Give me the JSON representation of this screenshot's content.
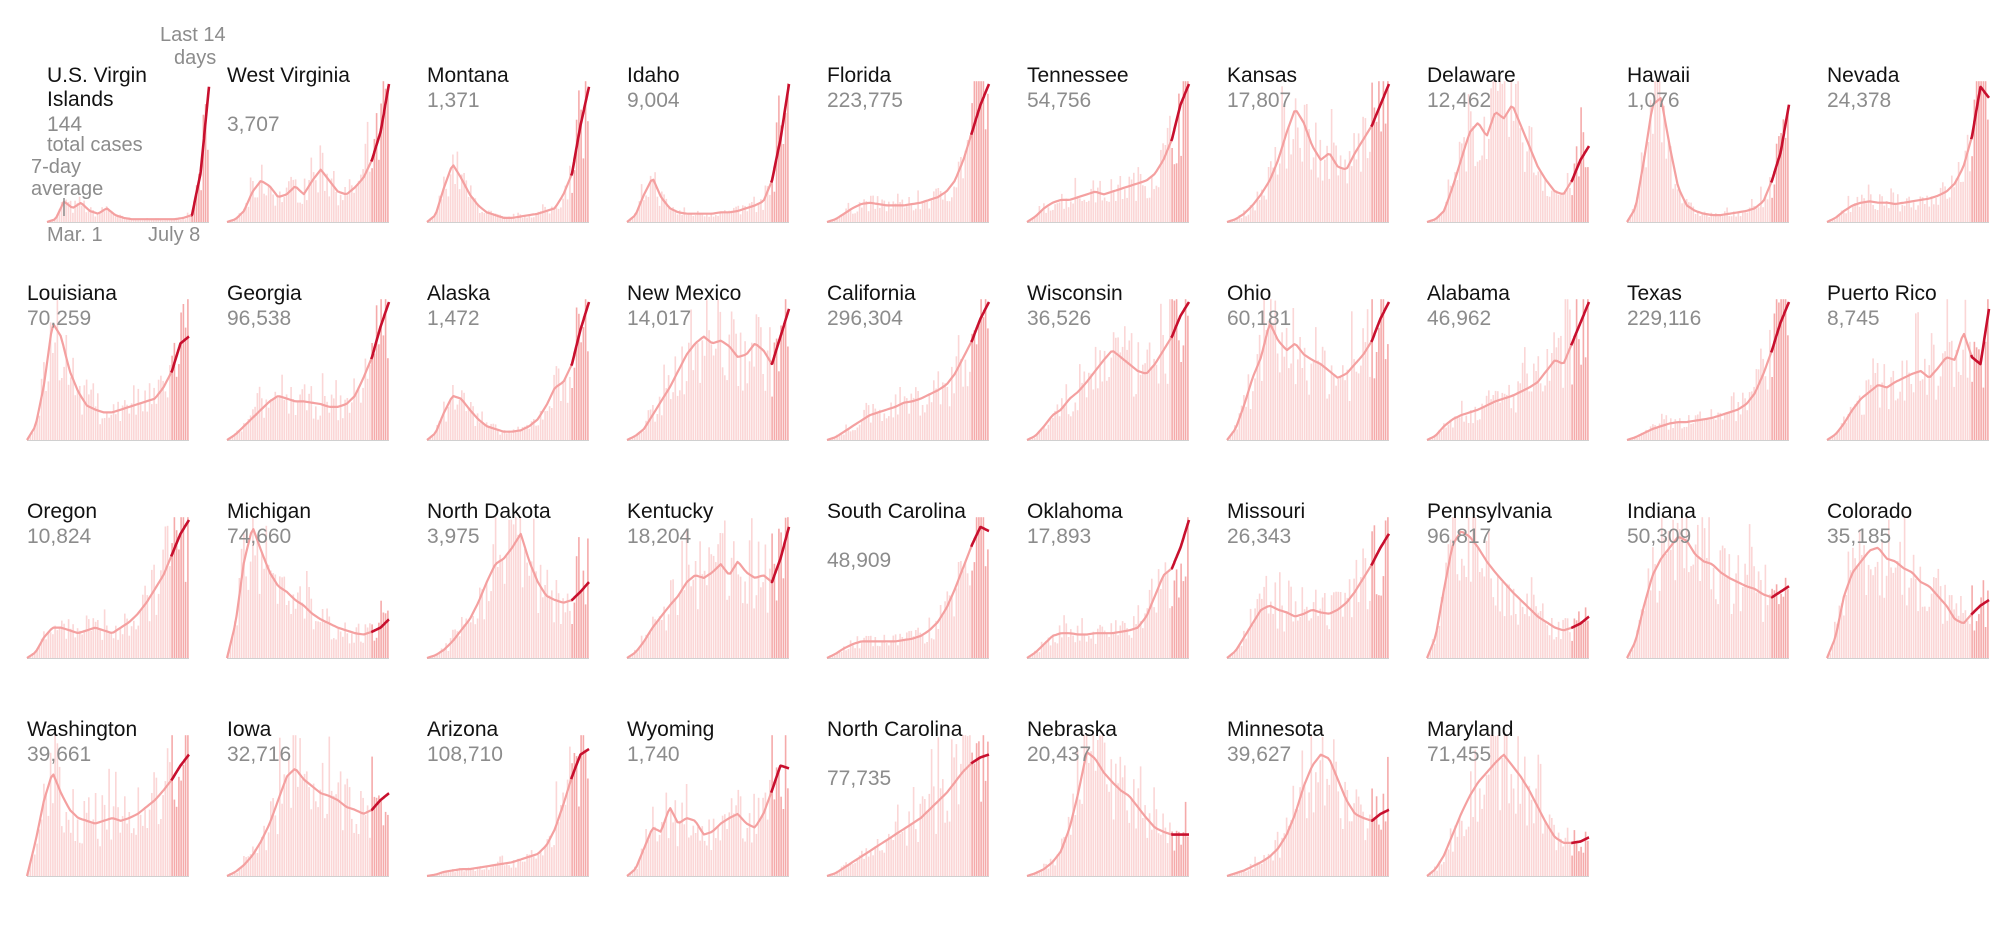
{
  "legend": {
    "last14_line1": "Last 14",
    "last14_line2": "days",
    "total_line1": "total cases",
    "avg_line1": "7-day",
    "avg_line2": "average",
    "start_date": "Mar. 1",
    "end_date": "July 8"
  },
  "colors": {
    "bar": "#fbd6d6",
    "bar_recent": "#f5aaaa",
    "line": "#f4a0a0",
    "line_recent": "#c8102e",
    "baseline": "#d0d0d0"
  },
  "chart_data": {
    "type": "area",
    "x_range": [
      "Mar. 1",
      "July 8"
    ],
    "highlight": "Last 14 days",
    "small_multiples": [
      {
        "state": "U.S. Virgin Islands",
        "total": "144",
        "shape": [
          0,
          0.02,
          0.15,
          0.1,
          0.14,
          0.08,
          0.06,
          0.1,
          0.05,
          0.03,
          0.02,
          0.02,
          0.02,
          0.02,
          0.02,
          0.02,
          0.03,
          0.05,
          0.35,
          0.98
        ]
      },
      {
        "state": "West Virginia",
        "total": "3,707",
        "shape": [
          0,
          0.02,
          0.08,
          0.22,
          0.3,
          0.26,
          0.18,
          0.2,
          0.26,
          0.2,
          0.3,
          0.38,
          0.3,
          0.22,
          0.2,
          0.25,
          0.32,
          0.45,
          0.65,
          1.0
        ]
      },
      {
        "state": "Montana",
        "total": "1,371",
        "shape": [
          0,
          0.05,
          0.25,
          0.42,
          0.32,
          0.2,
          0.12,
          0.07,
          0.05,
          0.03,
          0.03,
          0.04,
          0.05,
          0.06,
          0.08,
          0.1,
          0.2,
          0.35,
          0.7,
          0.98
        ]
      },
      {
        "state": "Idaho",
        "total": "9,004",
        "shape": [
          0,
          0.05,
          0.2,
          0.32,
          0.18,
          0.1,
          0.07,
          0.06,
          0.06,
          0.06,
          0.06,
          0.07,
          0.07,
          0.08,
          0.1,
          0.12,
          0.15,
          0.3,
          0.6,
          1.0
        ]
      },
      {
        "state": "Florida",
        "total": "223,775",
        "shape": [
          0,
          0.02,
          0.06,
          0.1,
          0.13,
          0.14,
          0.13,
          0.12,
          0.12,
          0.12,
          0.13,
          0.14,
          0.16,
          0.18,
          0.22,
          0.3,
          0.45,
          0.65,
          0.85,
          1.0
        ]
      },
      {
        "state": "Tennessee",
        "total": "54,756",
        "shape": [
          0,
          0.04,
          0.1,
          0.14,
          0.16,
          0.16,
          0.18,
          0.2,
          0.22,
          0.2,
          0.22,
          0.24,
          0.26,
          0.28,
          0.3,
          0.35,
          0.45,
          0.6,
          0.85,
          1.0
        ]
      },
      {
        "state": "Kansas",
        "total": "17,807",
        "shape": [
          0,
          0.02,
          0.06,
          0.12,
          0.2,
          0.3,
          0.45,
          0.65,
          0.82,
          0.72,
          0.55,
          0.45,
          0.5,
          0.4,
          0.38,
          0.5,
          0.6,
          0.7,
          0.85,
          1.0
        ]
      },
      {
        "state": "Delaware",
        "total": "12,462",
        "shape": [
          0,
          0.02,
          0.08,
          0.25,
          0.45,
          0.65,
          0.72,
          0.62,
          0.8,
          0.75,
          0.85,
          0.7,
          0.55,
          0.4,
          0.3,
          0.22,
          0.2,
          0.3,
          0.45,
          0.55
        ]
      },
      {
        "state": "Hawaii",
        "total": "1,076",
        "shape": [
          0,
          0.1,
          0.45,
          0.85,
          0.9,
          0.55,
          0.25,
          0.12,
          0.08,
          0.06,
          0.05,
          0.05,
          0.06,
          0.07,
          0.08,
          0.1,
          0.15,
          0.3,
          0.5,
          0.85
        ]
      },
      {
        "state": "Nevada",
        "total": "24,378",
        "shape": [
          0,
          0.03,
          0.08,
          0.12,
          0.14,
          0.15,
          0.14,
          0.14,
          0.13,
          0.14,
          0.15,
          0.16,
          0.17,
          0.19,
          0.22,
          0.28,
          0.4,
          0.62,
          0.98,
          0.9
        ]
      },
      {
        "state": "Louisiana",
        "total": "70,259",
        "shape": [
          0,
          0.1,
          0.4,
          0.85,
          0.75,
          0.5,
          0.35,
          0.25,
          0.22,
          0.2,
          0.2,
          0.22,
          0.24,
          0.26,
          0.28,
          0.3,
          0.38,
          0.5,
          0.7,
          0.75
        ]
      },
      {
        "state": "Georgia",
        "total": "96,538",
        "shape": [
          0,
          0.04,
          0.1,
          0.16,
          0.22,
          0.28,
          0.32,
          0.3,
          0.28,
          0.28,
          0.27,
          0.26,
          0.24,
          0.24,
          0.26,
          0.32,
          0.45,
          0.6,
          0.82,
          1.0
        ]
      },
      {
        "state": "Alaska",
        "total": "1,472",
        "shape": [
          0,
          0.05,
          0.2,
          0.32,
          0.3,
          0.22,
          0.15,
          0.1,
          0.08,
          0.06,
          0.06,
          0.07,
          0.1,
          0.15,
          0.25,
          0.38,
          0.42,
          0.55,
          0.8,
          1.0
        ]
      },
      {
        "state": "New Mexico",
        "total": "14,017",
        "shape": [
          0,
          0.03,
          0.08,
          0.18,
          0.28,
          0.38,
          0.5,
          0.62,
          0.7,
          0.75,
          0.7,
          0.72,
          0.68,
          0.6,
          0.62,
          0.7,
          0.65,
          0.55,
          0.75,
          0.95
        ]
      },
      {
        "state": "California",
        "total": "296,304",
        "shape": [
          0,
          0.02,
          0.06,
          0.1,
          0.14,
          0.18,
          0.2,
          0.22,
          0.24,
          0.27,
          0.28,
          0.3,
          0.33,
          0.36,
          0.4,
          0.48,
          0.6,
          0.72,
          0.88,
          1.0
        ]
      },
      {
        "state": "Wisconsin",
        "total": "36,526",
        "shape": [
          0,
          0.03,
          0.1,
          0.18,
          0.22,
          0.3,
          0.35,
          0.42,
          0.5,
          0.58,
          0.65,
          0.6,
          0.55,
          0.5,
          0.48,
          0.55,
          0.65,
          0.75,
          0.9,
          1.0
        ]
      },
      {
        "state": "Ohio",
        "total": "60,181",
        "shape": [
          0,
          0.08,
          0.25,
          0.45,
          0.6,
          0.85,
          0.72,
          0.65,
          0.7,
          0.62,
          0.58,
          0.55,
          0.5,
          0.45,
          0.48,
          0.55,
          0.62,
          0.72,
          0.88,
          1.0
        ]
      },
      {
        "state": "Alabama",
        "total": "46,962",
        "shape": [
          0,
          0.03,
          0.1,
          0.15,
          0.18,
          0.2,
          0.22,
          0.25,
          0.28,
          0.3,
          0.32,
          0.35,
          0.38,
          0.42,
          0.5,
          0.58,
          0.55,
          0.7,
          0.85,
          1.0
        ]
      },
      {
        "state": "Texas",
        "total": "229,116",
        "shape": [
          0,
          0.02,
          0.05,
          0.08,
          0.1,
          0.12,
          0.13,
          0.13,
          0.14,
          0.15,
          0.16,
          0.18,
          0.2,
          0.22,
          0.26,
          0.34,
          0.48,
          0.65,
          0.85,
          1.0
        ]
      },
      {
        "state": "Puerto Rico",
        "total": "8,745",
        "shape": [
          0,
          0.04,
          0.12,
          0.22,
          0.3,
          0.35,
          0.4,
          0.38,
          0.42,
          0.45,
          0.48,
          0.5,
          0.45,
          0.52,
          0.6,
          0.58,
          0.78,
          0.6,
          0.55,
          0.95
        ]
      },
      {
        "state": "Oregon",
        "total": "10,824",
        "shape": [
          0,
          0.04,
          0.15,
          0.22,
          0.22,
          0.2,
          0.18,
          0.2,
          0.22,
          0.2,
          0.18,
          0.22,
          0.26,
          0.32,
          0.4,
          0.5,
          0.6,
          0.75,
          0.9,
          1.0
        ]
      },
      {
        "state": "Michigan",
        "total": "74,660",
        "shape": [
          0,
          0.25,
          0.7,
          0.95,
          0.78,
          0.62,
          0.52,
          0.48,
          0.42,
          0.38,
          0.32,
          0.28,
          0.25,
          0.22,
          0.2,
          0.18,
          0.17,
          0.19,
          0.22,
          0.28
        ]
      },
      {
        "state": "North Dakota",
        "total": "3,975",
        "shape": [
          0,
          0.02,
          0.06,
          0.12,
          0.2,
          0.28,
          0.4,
          0.55,
          0.68,
          0.72,
          0.8,
          0.9,
          0.7,
          0.55,
          0.45,
          0.42,
          0.4,
          0.42,
          0.48,
          0.55
        ]
      },
      {
        "state": "Kentucky",
        "total": "18,204",
        "shape": [
          0,
          0.04,
          0.12,
          0.22,
          0.3,
          0.38,
          0.45,
          0.55,
          0.6,
          0.58,
          0.62,
          0.68,
          0.6,
          0.7,
          0.62,
          0.58,
          0.6,
          0.55,
          0.72,
          0.95
        ]
      },
      {
        "state": "South Carolina",
        "total": "48,909",
        "shape": [
          0,
          0.03,
          0.07,
          0.1,
          0.12,
          0.12,
          0.12,
          0.12,
          0.12,
          0.13,
          0.14,
          0.16,
          0.2,
          0.26,
          0.36,
          0.5,
          0.66,
          0.82,
          0.95,
          0.92
        ]
      },
      {
        "state": "Oklahoma",
        "total": "17,893",
        "shape": [
          0,
          0.04,
          0.1,
          0.16,
          0.18,
          0.18,
          0.17,
          0.17,
          0.18,
          0.18,
          0.18,
          0.19,
          0.2,
          0.22,
          0.3,
          0.45,
          0.6,
          0.65,
          0.8,
          1.0
        ]
      },
      {
        "state": "Missouri",
        "total": "26,343",
        "shape": [
          0,
          0.05,
          0.15,
          0.25,
          0.35,
          0.38,
          0.35,
          0.33,
          0.3,
          0.32,
          0.35,
          0.33,
          0.32,
          0.35,
          0.4,
          0.48,
          0.58,
          0.68,
          0.8,
          0.9
        ]
      },
      {
        "state": "Pennsylvania",
        "total": "96,817",
        "shape": [
          0,
          0.15,
          0.5,
          0.82,
          0.92,
          0.88,
          0.8,
          0.7,
          0.62,
          0.55,
          0.48,
          0.42,
          0.36,
          0.3,
          0.26,
          0.22,
          0.2,
          0.22,
          0.25,
          0.3
        ]
      },
      {
        "state": "Indiana",
        "total": "50,309",
        "shape": [
          0,
          0.12,
          0.38,
          0.6,
          0.72,
          0.8,
          0.88,
          0.85,
          0.75,
          0.7,
          0.68,
          0.62,
          0.58,
          0.55,
          0.52,
          0.5,
          0.46,
          0.44,
          0.48,
          0.52
        ]
      },
      {
        "state": "Colorado",
        "total": "35,185",
        "shape": [
          0,
          0.15,
          0.45,
          0.62,
          0.7,
          0.78,
          0.8,
          0.72,
          0.7,
          0.65,
          0.62,
          0.55,
          0.52,
          0.45,
          0.38,
          0.28,
          0.25,
          0.32,
          0.38,
          0.42
        ]
      },
      {
        "state": "Washington",
        "total": "39,661",
        "shape": [
          0,
          0.25,
          0.55,
          0.75,
          0.6,
          0.48,
          0.42,
          0.4,
          0.38,
          0.4,
          0.42,
          0.4,
          0.42,
          0.45,
          0.5,
          0.55,
          0.62,
          0.7,
          0.8,
          0.88
        ]
      },
      {
        "state": "Iowa",
        "total": "32,716",
        "shape": [
          0,
          0.03,
          0.08,
          0.15,
          0.25,
          0.38,
          0.55,
          0.72,
          0.78,
          0.7,
          0.65,
          0.6,
          0.58,
          0.55,
          0.5,
          0.48,
          0.45,
          0.48,
          0.55,
          0.6
        ]
      },
      {
        "state": "Arizona",
        "total": "108,710",
        "shape": [
          0,
          0.01,
          0.03,
          0.04,
          0.05,
          0.05,
          0.06,
          0.07,
          0.08,
          0.09,
          0.1,
          0.12,
          0.14,
          0.16,
          0.22,
          0.34,
          0.52,
          0.72,
          0.88,
          0.92
        ]
      },
      {
        "state": "Wyoming",
        "total": "1,740",
        "shape": [
          0,
          0.05,
          0.2,
          0.35,
          0.32,
          0.5,
          0.38,
          0.42,
          0.4,
          0.3,
          0.32,
          0.38,
          0.42,
          0.45,
          0.38,
          0.35,
          0.45,
          0.62,
          0.8,
          0.78
        ]
      },
      {
        "state": "North Carolina",
        "total": "77,735",
        "shape": [
          0,
          0.02,
          0.06,
          0.1,
          0.14,
          0.18,
          0.22,
          0.26,
          0.3,
          0.34,
          0.38,
          0.42,
          0.48,
          0.54,
          0.6,
          0.68,
          0.76,
          0.82,
          0.86,
          0.88
        ]
      },
      {
        "state": "Nebraska",
        "total": "20,437",
        "shape": [
          0,
          0.02,
          0.05,
          0.1,
          0.18,
          0.35,
          0.6,
          0.9,
          0.85,
          0.75,
          0.68,
          0.62,
          0.58,
          0.5,
          0.42,
          0.35,
          0.32,
          0.3,
          0.3,
          0.3
        ]
      },
      {
        "state": "Minnesota",
        "total": "39,627",
        "shape": [
          0,
          0.02,
          0.04,
          0.07,
          0.1,
          0.14,
          0.2,
          0.3,
          0.45,
          0.65,
          0.8,
          0.88,
          0.85,
          0.7,
          0.55,
          0.45,
          0.42,
          0.4,
          0.45,
          0.48
        ]
      },
      {
        "state": "Maryland",
        "total": "71,455",
        "shape": [
          0,
          0.05,
          0.15,
          0.3,
          0.45,
          0.58,
          0.68,
          0.75,
          0.82,
          0.88,
          0.8,
          0.72,
          0.62,
          0.5,
          0.38,
          0.28,
          0.24,
          0.24,
          0.25,
          0.28
        ]
      }
    ]
  }
}
